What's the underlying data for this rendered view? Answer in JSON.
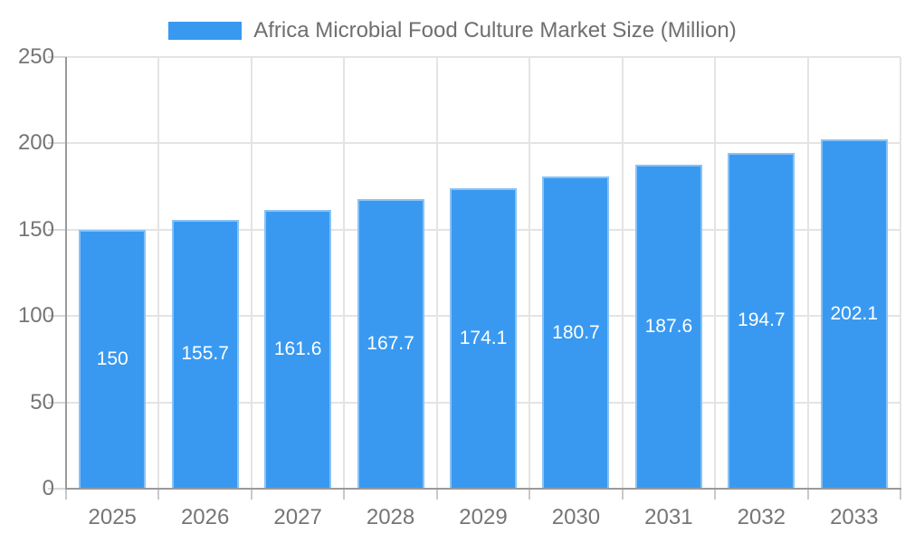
{
  "legend": {
    "label": "Africa Microbial Food Culture Market Size (Million)"
  },
  "colors": {
    "bar": "#3999F0",
    "bar_border": "rgba(255,255,255,0.40)",
    "grid": "#E4E4E4",
    "axis_line": "#9A9A9A",
    "tick": "#C9C9C9",
    "axis_label": "#757575",
    "legend_text": "#6F6F6F",
    "value_label": "#FFFFFF",
    "background": "#FFFFFF"
  },
  "chart_data": {
    "type": "bar",
    "title": "Africa Microbial Food Culture Market Size (Million)",
    "categories": [
      "2025",
      "2026",
      "2027",
      "2028",
      "2029",
      "2030",
      "2031",
      "2032",
      "2033"
    ],
    "values": [
      150,
      155.7,
      161.6,
      167.7,
      174.1,
      180.7,
      187.6,
      194.7,
      202.1
    ],
    "xlabel": "",
    "ylabel": "",
    "ylim": [
      0,
      250
    ],
    "yticks": [
      0,
      50,
      100,
      150,
      200,
      250
    ],
    "grid": true,
    "legend_position": "top",
    "value_label_position": "inside-center"
  }
}
